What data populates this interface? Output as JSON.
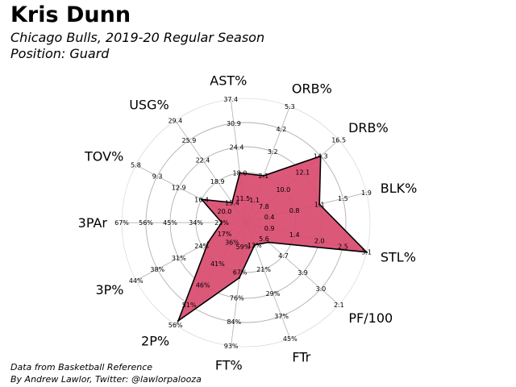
{
  "header": {
    "title": "Kris Dunn",
    "subtitle": "Chicago Bulls, 2019-20 Regular Season",
    "position": "Position: Guard"
  },
  "footer": {
    "credit_1": "Data from Basketball Reference",
    "credit_2": "By Andrew Lawlor, Twitter: @lawlorpalooza"
  },
  "chart_data": {
    "type": "radar",
    "title": "Kris Dunn",
    "subtitle": "Chicago Bulls, 2019-20 Regular Season",
    "grid": true,
    "fill_color": "#d94a6e",
    "edge_color": "#000000",
    "grid_color": "#b0b0b0",
    "axes": [
      {
        "name": "AST%",
        "ticks": [
          "11.5",
          "18.0",
          "24.4",
          "30.9",
          "37.4"
        ],
        "value": 18.0
      },
      {
        "name": "ORB%",
        "ticks": [
          "1.1",
          "2.1",
          "3.2",
          "4.2",
          "5.3"
        ],
        "value": 2.1
      },
      {
        "name": "DRB%",
        "ticks": [
          "7.8",
          "10.0",
          "12.1",
          "14.3",
          "16.5"
        ],
        "value": 14.3
      },
      {
        "name": "BLK%",
        "ticks": [
          "0.4",
          "0.8",
          "1.1",
          "1.5",
          "1.9"
        ],
        "value": 1.1
      },
      {
        "name": "STL%",
        "ticks": [
          "0.9",
          "1.4",
          "2.0",
          "2.5",
          "3.1"
        ],
        "value": 3.1
      },
      {
        "name": "PF/100",
        "ticks": [
          "5.6",
          "4.7",
          "3.9",
          "3.0",
          "2.1"
        ],
        "value": 5.4
      },
      {
        "name": "FTr",
        "ticks": [
          "13%",
          "21%",
          "29%",
          "37%",
          "45%"
        ],
        "value": 13
      },
      {
        "name": "FT%",
        "ticks": [
          "59%",
          "67%",
          "76%",
          "84%",
          "93%"
        ],
        "value": 69
      },
      {
        "name": "2P%",
        "ticks": [
          "36%",
          "41%",
          "46%",
          "51%",
          "56%"
        ],
        "value": 55
      },
      {
        "name": "3P%",
        "ticks": [
          "17%",
          "24%",
          "31%",
          "38%",
          "44%"
        ],
        "value": 22
      },
      {
        "name": "3PAr",
        "ticks": [
          "22%",
          "34%",
          "45%",
          "56%",
          "67%"
        ],
        "value": 22
      },
      {
        "name": "TOV%",
        "ticks": [
          "20.0",
          "16.4",
          "12.9",
          "9.3",
          "5.8"
        ],
        "value": 16.4
      },
      {
        "name": "USG%",
        "ticks": [
          "15.4",
          "18.9",
          "22.4",
          "25.9",
          "29.4"
        ],
        "value": 15.4
      }
    ]
  }
}
